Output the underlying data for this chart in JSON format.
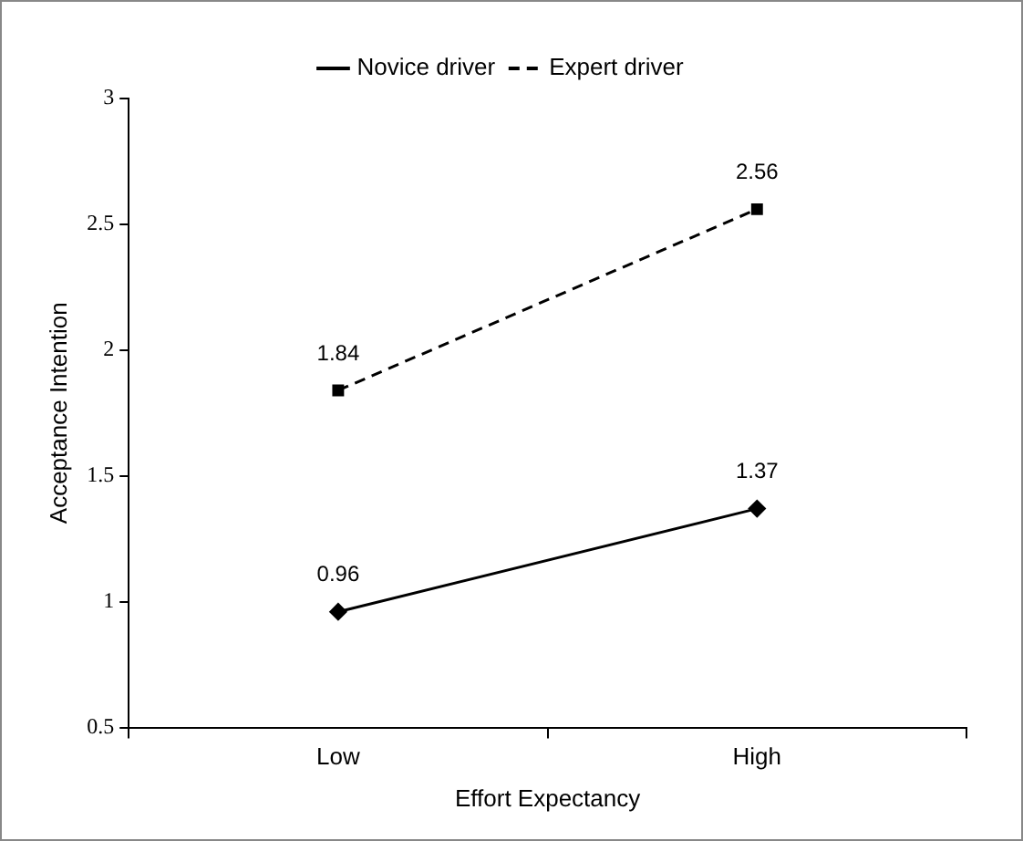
{
  "chart_data": {
    "type": "line",
    "xlabel": "Effort Expectancy",
    "ylabel": "Acceptance Intention",
    "categories": [
      "Low",
      "High"
    ],
    "series": [
      {
        "name": "Novice driver",
        "color": "#000000",
        "values": [
          0.96,
          1.37
        ],
        "marker": "diamond",
        "line_style": "solid"
      },
      {
        "name": "Expert driver",
        "color": "#000000",
        "values": [
          1.84,
          2.56
        ],
        "marker": "square",
        "line_style": "dashed"
      }
    ],
    "ylim": [
      0.5,
      3
    ],
    "yticks": [
      0.5,
      1,
      1.5,
      2,
      2.5,
      3
    ],
    "grid": false,
    "legend": "top",
    "data_labels": true
  }
}
